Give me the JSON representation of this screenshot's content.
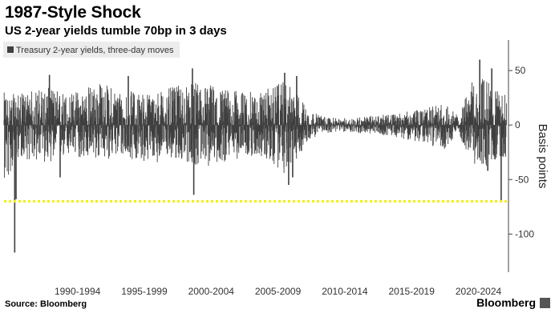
{
  "header": {
    "title": "1987-Style Shock",
    "subtitle": "US 2-year yields tumble 70bp in 3 days"
  },
  "footer": {
    "source": "Source: Bloomberg",
    "brand": "Bloomberg"
  },
  "colors": {
    "series": "#3f3f3f",
    "threshold": "#f5ee15",
    "legend_bg": "#ececec"
  },
  "chart_data": {
    "type": "bar",
    "legend": "Treasury 2-year yields, three-day moves",
    "legend_position": "top-left",
    "ylabel": "Basis points",
    "y_axis_side": "right",
    "ylim": [
      -135,
      78
    ],
    "yticks": [
      50,
      0,
      -50,
      -100
    ],
    "ytick_labels": [
      "50",
      "0",
      "-50",
      "-100"
    ],
    "x_range": [
      1987.0,
      2024.75
    ],
    "x_tick_positions": [
      1992.5,
      1997.5,
      2002.5,
      2007.5,
      2012.5,
      2017.5,
      2022.5
    ],
    "x_tick_labels": [
      "1990-1994",
      "1995-1999",
      "2000-2004",
      "2005-2009",
      "2010-2014",
      "2015-2019",
      "2020-2024"
    ],
    "threshold_line": -70,
    "grid": false,
    "series": [
      {
        "name": "Treasury 2-year yields, three-day moves",
        "envelope": {
          "years": [
            1987.0,
            1988,
            1990,
            1992,
            1994,
            1996,
            1998,
            2000,
            2002,
            2004,
            2006,
            2008,
            2009,
            2010,
            2011,
            2012,
            2014,
            2016,
            2018,
            2020,
            2021,
            2022,
            2023,
            2024
          ],
          "high": [
            30,
            28,
            35,
            30,
            40,
            32,
            30,
            36,
            40,
            32,
            30,
            40,
            28,
            12,
            8,
            6,
            8,
            10,
            14,
            20,
            8,
            40,
            45,
            30
          ],
          "low": [
            -60,
            -30,
            -35,
            -30,
            -32,
            -30,
            -35,
            -32,
            -40,
            -32,
            -28,
            -45,
            -30,
            -12,
            -8,
            -6,
            -8,
            -10,
            -16,
            -22,
            -8,
            -35,
            -40,
            -30
          ]
        },
        "notable_moves": [
          {
            "x": 1987.8,
            "y": -117
          },
          {
            "x": 1987.9,
            "y": -68
          },
          {
            "x": 1990.4,
            "y": 46
          },
          {
            "x": 1991.2,
            "y": -48
          },
          {
            "x": 1996.3,
            "y": 45
          },
          {
            "x": 2001.1,
            "y": 52
          },
          {
            "x": 2001.2,
            "y": -64
          },
          {
            "x": 2008.0,
            "y": 48
          },
          {
            "x": 2008.3,
            "y": -55
          },
          {
            "x": 2008.6,
            "y": -48
          },
          {
            "x": 2008.9,
            "y": 45
          },
          {
            "x": 2022.6,
            "y": 60
          },
          {
            "x": 2023.2,
            "y": -42
          },
          {
            "x": 2023.5,
            "y": 52
          },
          {
            "x": 2024.2,
            "y": -70
          }
        ]
      }
    ]
  }
}
